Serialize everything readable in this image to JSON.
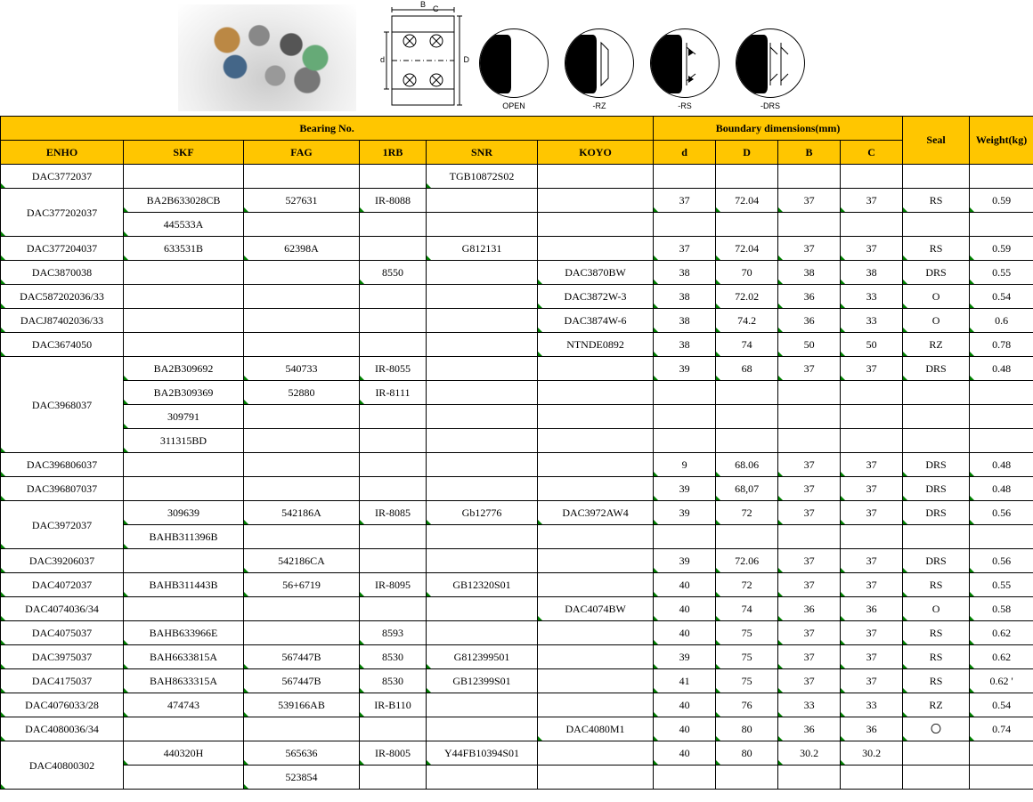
{
  "colors": {
    "header_bg": "#ffc600",
    "border": "#000000",
    "marker": "#008000",
    "page_bg": "#ffffff",
    "text": "#000000"
  },
  "seal_diagram_labels": [
    "OPEN",
    "-RZ",
    "-RS",
    "-DRS"
  ],
  "cross_section_dims": {
    "B": "B",
    "C": "C",
    "d": "d",
    "D": "D"
  },
  "table": {
    "group_headers": {
      "bearing_no": "Bearing No.",
      "boundary": "Boundary dimensions(mm)",
      "seal": "Seal",
      "weight": "Weight(kg)"
    },
    "columns": [
      "ENHO",
      "SKF",
      "FAG",
      "1RB",
      "SNR",
      "KOYO",
      "d",
      "D",
      "B",
      "C"
    ],
    "rows": [
      {
        "enho": "DAC3772037",
        "enho_rowspan": 1,
        "skf": "",
        "fag": "",
        "rb": "",
        "snr": "TGB10872S02",
        "koyo": "",
        "d": "",
        "D": "",
        "B": "",
        "C": "",
        "seal": "",
        "wt": ""
      },
      {
        "enho": "DAC377202037",
        "enho_rowspan": 2,
        "skf": "BA2B633028CB",
        "fag": "527631",
        "rb": "IR-8088",
        "snr": "",
        "koyo": "",
        "d": "37",
        "D": "72.04",
        "B": "37",
        "C": "37",
        "seal": "RS",
        "wt": "0.59"
      },
      {
        "skf": "445533A",
        "fag": "",
        "rb": "",
        "snr": "",
        "koyo": "",
        "d": "",
        "D": "",
        "B": "",
        "C": "",
        "seal": "",
        "wt": ""
      },
      {
        "enho": "DAC377204037",
        "enho_rowspan": 1,
        "skf": "633531B",
        "fag": "62398A",
        "rb": "",
        "snr": "G812131",
        "koyo": "",
        "d": "37",
        "D": "72.04",
        "B": "37",
        "C": "37",
        "seal": "RS",
        "wt": "0.59"
      },
      {
        "enho": "DAC3870038",
        "enho_rowspan": 1,
        "skf": "",
        "fag": "",
        "rb": "8550",
        "snr": "",
        "koyo": "DAC3870BW",
        "d": "38",
        "D": "70",
        "B": "38",
        "C": "38",
        "seal": "DRS",
        "wt": "0.55"
      },
      {
        "enho": "DAC587202036/33",
        "enho_rowspan": 1,
        "skf": "",
        "fag": "",
        "rb": "",
        "snr": "",
        "koyo": "DAC3872W-3",
        "d": "38",
        "D": "72.02",
        "B": "36",
        "C": "33",
        "seal": "O",
        "wt": "0.54"
      },
      {
        "enho": "DACJ87402036/33",
        "enho_rowspan": 1,
        "skf": "",
        "fag": "",
        "rb": "",
        "snr": "",
        "koyo": "DAC3874W-6",
        "d": "38",
        "D": "74.2",
        "B": "36",
        "C": "33",
        "seal": "O",
        "wt": "0.6"
      },
      {
        "enho": "DAC3674050",
        "enho_rowspan": 1,
        "skf": "",
        "fag": "",
        "rb": "",
        "snr": "",
        "koyo": "NTNDE0892",
        "d": "38",
        "D": "74",
        "B": "50",
        "C": "50",
        "seal": "RZ",
        "wt": "0.78"
      },
      {
        "enho": "DAC3968037",
        "enho_rowspan": 4,
        "skf": "BA2B309692",
        "fag": "540733",
        "rb": "IR-8055",
        "snr": "",
        "koyo": "",
        "d": "39",
        "D": "68",
        "B": "37",
        "C": "37",
        "seal": "DRS",
        "wt": "0.48"
      },
      {
        "skf": "BA2B309369",
        "fag": "52880",
        "rb": "IR-8111",
        "snr": "",
        "koyo": "",
        "d": "",
        "D": "",
        "B": "",
        "C": "",
        "seal": "",
        "wt": ""
      },
      {
        "skf": "309791",
        "fag": "",
        "rb": "",
        "snr": "",
        "koyo": "",
        "d": "",
        "D": "",
        "B": "",
        "C": "",
        "seal": "",
        "wt": ""
      },
      {
        "skf": "311315BD",
        "fag": "",
        "rb": "",
        "snr": "",
        "koyo": "",
        "d": "",
        "D": "",
        "B": "",
        "C": "",
        "seal": "",
        "wt": ""
      },
      {
        "enho": "DAC396806037",
        "enho_rowspan": 1,
        "skf": "",
        "fag": "",
        "rb": "",
        "snr": "",
        "koyo": "",
        "d": "9",
        "D": "68.06",
        "B": "37",
        "C": "37",
        "seal": "DRS",
        "wt": "0.48"
      },
      {
        "enho": "DAC396807037",
        "enho_rowspan": 1,
        "skf": "",
        "fag": "",
        "rb": "",
        "snr": "",
        "koyo": "",
        "d": "39",
        "D": "68,07",
        "B": "37",
        "C": "37",
        "seal": "DRS",
        "wt": "0.48"
      },
      {
        "enho": "DAC3972037",
        "enho_rowspan": 2,
        "skf": "309639",
        "fag": "542186A",
        "rb": "IR-8085",
        "snr": "Gb12776",
        "koyo": "DAC3972AW4",
        "d": "39",
        "D": "72",
        "B": "37",
        "C": "37",
        "seal": "DRS",
        "wt": "0.56"
      },
      {
        "skf": "BAHB311396B",
        "fag": "",
        "rb": "",
        "snr": "",
        "koyo": "",
        "d": "",
        "D": "",
        "B": "",
        "C": "",
        "seal": "",
        "wt": ""
      },
      {
        "enho": "DAC39206037",
        "enho_rowspan": 1,
        "skf": "",
        "fag": "542186CA",
        "rb": "",
        "snr": "",
        "koyo": "",
        "d": "39",
        "D": "72.06",
        "B": "37",
        "C": "37",
        "seal": "DRS",
        "wt": "0.56"
      },
      {
        "enho": "DAC4072037",
        "enho_rowspan": 1,
        "skf": "BAHB311443B",
        "fag": "56+6719",
        "rb": "IR-8095",
        "snr": "GB12320S01",
        "koyo": "",
        "d": "40",
        "D": "72",
        "B": "37",
        "C": "37",
        "seal": "RS",
        "wt": "0.55"
      },
      {
        "enho": "DAC4074036/34",
        "enho_rowspan": 1,
        "skf": "",
        "fag": "",
        "rb": "",
        "snr": "",
        "koyo": "DAC4074BW",
        "d": "40",
        "D": "74",
        "B": "36",
        "C": "36",
        "seal": "O",
        "wt": "0.58"
      },
      {
        "enho": "DAC4075037",
        "enho_rowspan": 1,
        "skf": "BAHB633966E",
        "fag": "",
        "rb": "8593",
        "snr": "",
        "koyo": "",
        "d": "40",
        "D": "75",
        "B": "37",
        "C": "37",
        "seal": "RS",
        "wt": "0.62"
      },
      {
        "enho": "DAC3975037",
        "enho_rowspan": 1,
        "skf": "BAH6633815A",
        "fag": "567447B",
        "rb": "8530",
        "snr": "G812399501",
        "koyo": "",
        "d": "39",
        "D": "75",
        "B": "37",
        "C": "37",
        "seal": "RS",
        "wt": "0.62"
      },
      {
        "enho": "DAC4175037",
        "enho_rowspan": 1,
        "skf": "BAH8633315A",
        "fag": "567447B",
        "rb": "8530",
        "snr": "GB12399S01",
        "koyo": "",
        "d": "41",
        "D": "75",
        "B": "37",
        "C": "37",
        "seal": "RS",
        "wt": "0.62 '"
      },
      {
        "enho": "DAC4076033/28",
        "enho_rowspan": 1,
        "skf": "474743",
        "fag": "539166AB",
        "rb": "IR-B110",
        "snr": "",
        "koyo": "",
        "d": "40",
        "D": "76",
        "B": "33",
        "C": "33",
        "seal": "RZ",
        "wt": "0.54"
      },
      {
        "enho": "DAC4080036/34",
        "enho_rowspan": 1,
        "skf": "",
        "fag": "",
        "rb": "",
        "snr": "",
        "koyo": "DAC4080M1",
        "d": "40",
        "D": "80",
        "B": "36",
        "C": "36",
        "seal": "〇",
        "wt": "0.74"
      },
      {
        "enho": "DAC40800302",
        "enho_rowspan": 2,
        "skf": "440320H",
        "fag": "565636",
        "rb": "IR-8005",
        "snr": "Y44FB10394S01",
        "koyo": "",
        "d": "40",
        "D": "80",
        "B": "30.2",
        "C": "30.2",
        "seal": "",
        "wt": ""
      },
      {
        "skf": "",
        "fag": "523854",
        "rb": "",
        "snr": "",
        "koyo": "",
        "d": "",
        "D": "",
        "B": "",
        "C": "",
        "seal": "",
        "wt": ""
      }
    ]
  }
}
